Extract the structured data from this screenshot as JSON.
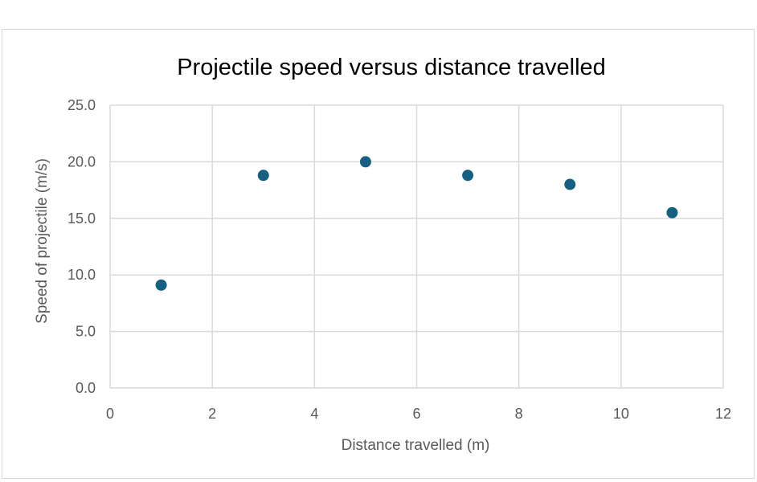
{
  "chart_data": {
    "type": "scatter",
    "title": "Projectile speed versus distance travelled",
    "xlabel": "Distance travelled (m)",
    "ylabel": "Speed of projectile (m/s)",
    "xlim": [
      0,
      12
    ],
    "ylim": [
      0,
      25
    ],
    "x_ticks": [
      "0",
      "2",
      "4",
      "6",
      "8",
      "10",
      "12"
    ],
    "y_ticks": [
      "0.0",
      "5.0",
      "10.0",
      "15.0",
      "20.0",
      "25.0"
    ],
    "grid": true,
    "legend": "none",
    "marker_color": "#156082",
    "points": [
      {
        "x": 1,
        "y": 9.1
      },
      {
        "x": 3,
        "y": 18.8
      },
      {
        "x": 5,
        "y": 20.0
      },
      {
        "x": 7,
        "y": 18.8
      },
      {
        "x": 9,
        "y": 18.0
      },
      {
        "x": 11,
        "y": 15.5
      }
    ]
  }
}
